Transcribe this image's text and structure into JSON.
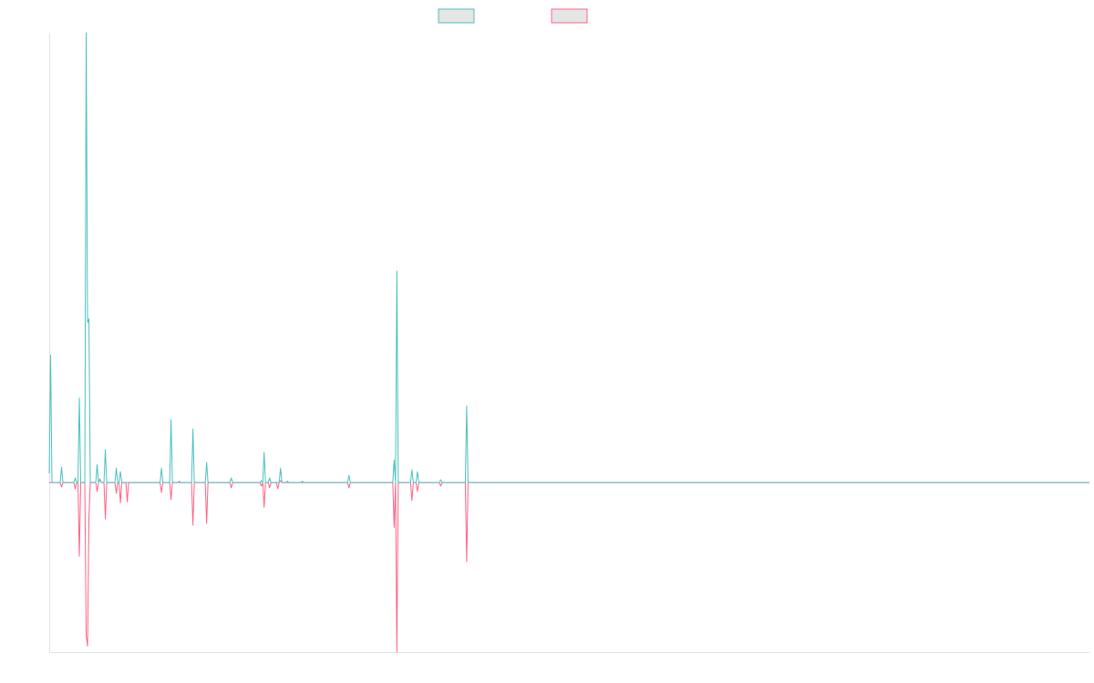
{
  "chart_data": {
    "type": "line",
    "title": "",
    "xlabel": "",
    "ylabel": "",
    "xlim": [
      0,
      760
    ],
    "ylim": [
      -37.7,
      100
    ],
    "grid": false,
    "legend_placement": "top-center",
    "baseline_value": 0,
    "series": [
      {
        "color": "#4bc0c0",
        "legend_fill": "#e5e5e5",
        "points": [
          [
            0,
            2
          ],
          [
            1,
            28.3
          ],
          [
            9,
            3.4
          ],
          [
            19,
            1
          ],
          [
            22,
            18.8
          ],
          [
            27,
            100
          ],
          [
            28,
            35.6
          ],
          [
            29,
            36.4
          ],
          [
            35,
            4
          ],
          [
            37,
            0.6
          ],
          [
            41,
            7.3
          ],
          [
            49,
            3.2
          ],
          [
            52,
            2.4
          ],
          [
            82,
            3.2
          ],
          [
            89,
            14
          ],
          [
            95,
            0.3
          ],
          [
            105,
            11.9
          ],
          [
            115,
            4.5
          ],
          [
            133,
            1
          ],
          [
            155,
            0.4
          ],
          [
            157,
            6.7
          ],
          [
            161,
            1
          ],
          [
            169,
            3.2
          ],
          [
            174,
            0.3
          ],
          [
            185,
            0.3
          ],
          [
            219,
            1.6
          ],
          [
            252,
            5
          ],
          [
            254,
            47
          ],
          [
            265,
            2.8
          ],
          [
            269,
            2.4
          ],
          [
            286,
            0.6
          ],
          [
            305,
            17
          ]
        ]
      },
      {
        "color": "#ff6384",
        "legend_fill": "#e5e5e5",
        "points": [
          [
            9,
            -1
          ],
          [
            19,
            -1.4
          ],
          [
            22,
            -16.4
          ],
          [
            27,
            -34
          ],
          [
            28,
            -36.4
          ],
          [
            29,
            -8
          ],
          [
            35,
            -2
          ],
          [
            37,
            0.8
          ],
          [
            41,
            -8.1
          ],
          [
            49,
            -2.4
          ],
          [
            52,
            -4.5
          ],
          [
            57,
            -4.3
          ],
          [
            82,
            -2.2
          ],
          [
            89,
            -3.8
          ],
          [
            105,
            -9.5
          ],
          [
            115,
            -9.1
          ],
          [
            133,
            -1.2
          ],
          [
            155,
            -0.8
          ],
          [
            157,
            -5.5
          ],
          [
            161,
            -1.2
          ],
          [
            167,
            -1.4
          ],
          [
            169,
            0.4
          ],
          [
            219,
            -1.2
          ],
          [
            252,
            -10
          ],
          [
            254,
            -37.7
          ],
          [
            265,
            -4
          ],
          [
            269,
            -2
          ],
          [
            286,
            -0.8
          ],
          [
            305,
            -17.6
          ]
        ]
      }
    ]
  }
}
